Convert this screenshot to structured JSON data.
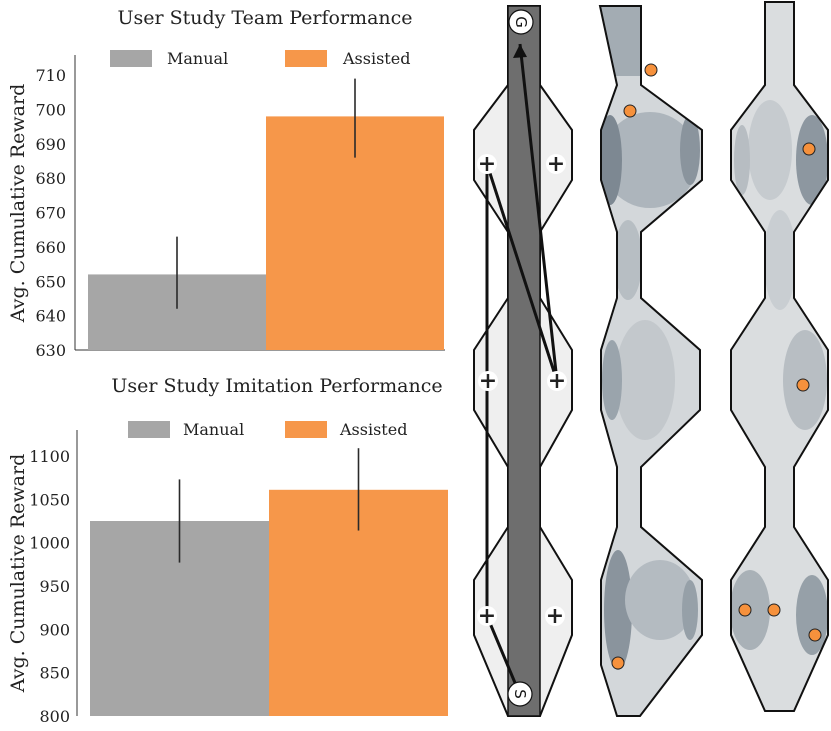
{
  "colors": {
    "manual": "#a6a6a6",
    "assisted": "#f6974a",
    "dark_lane": "#6e6e6e",
    "map_fill": "#efefef",
    "heat_dark": "#7f8a94",
    "heat_light": "#d3d7da",
    "marker": "#f6913c",
    "plus": "#d83a12"
  },
  "chart_data": [
    {
      "type": "bar",
      "title": "User Study Team Performance",
      "categories": [
        "Manual",
        "Assisted"
      ],
      "values": [
        652,
        698
      ],
      "error": [
        [
          642,
          663
        ],
        [
          686,
          709
        ]
      ],
      "ylabel": "Avg. Cumulative Reward",
      "xlabel": "",
      "ylim": [
        630,
        715
      ],
      "yticks": [
        630,
        640,
        650,
        660,
        670,
        680,
        690,
        700,
        710
      ],
      "legend": [
        "Manual",
        "Assisted"
      ],
      "legend_position": "top",
      "grid": false
    },
    {
      "type": "bar",
      "title": "User Study Imitation Performance",
      "categories": [
        "Manual",
        "Assisted"
      ],
      "values": [
        1025,
        1061
      ],
      "error": [
        [
          977,
          1073
        ],
        [
          1014,
          1109
        ]
      ],
      "ylabel": "Avg. Cumulative Reward",
      "xlabel": "",
      "ylim": [
        800,
        1130
      ],
      "yticks": [
        800,
        850,
        900,
        950,
        1000,
        1050,
        1100
      ],
      "legend": [
        "Manual",
        "Assisted"
      ],
      "legend_position": "top",
      "grid": false
    }
  ],
  "maps": {
    "start_label": "S",
    "goal_label": "G",
    "plus_symbol": "+",
    "panels": [
      "task-layout",
      "manual-heatmap",
      "assisted-heatmap"
    ]
  }
}
